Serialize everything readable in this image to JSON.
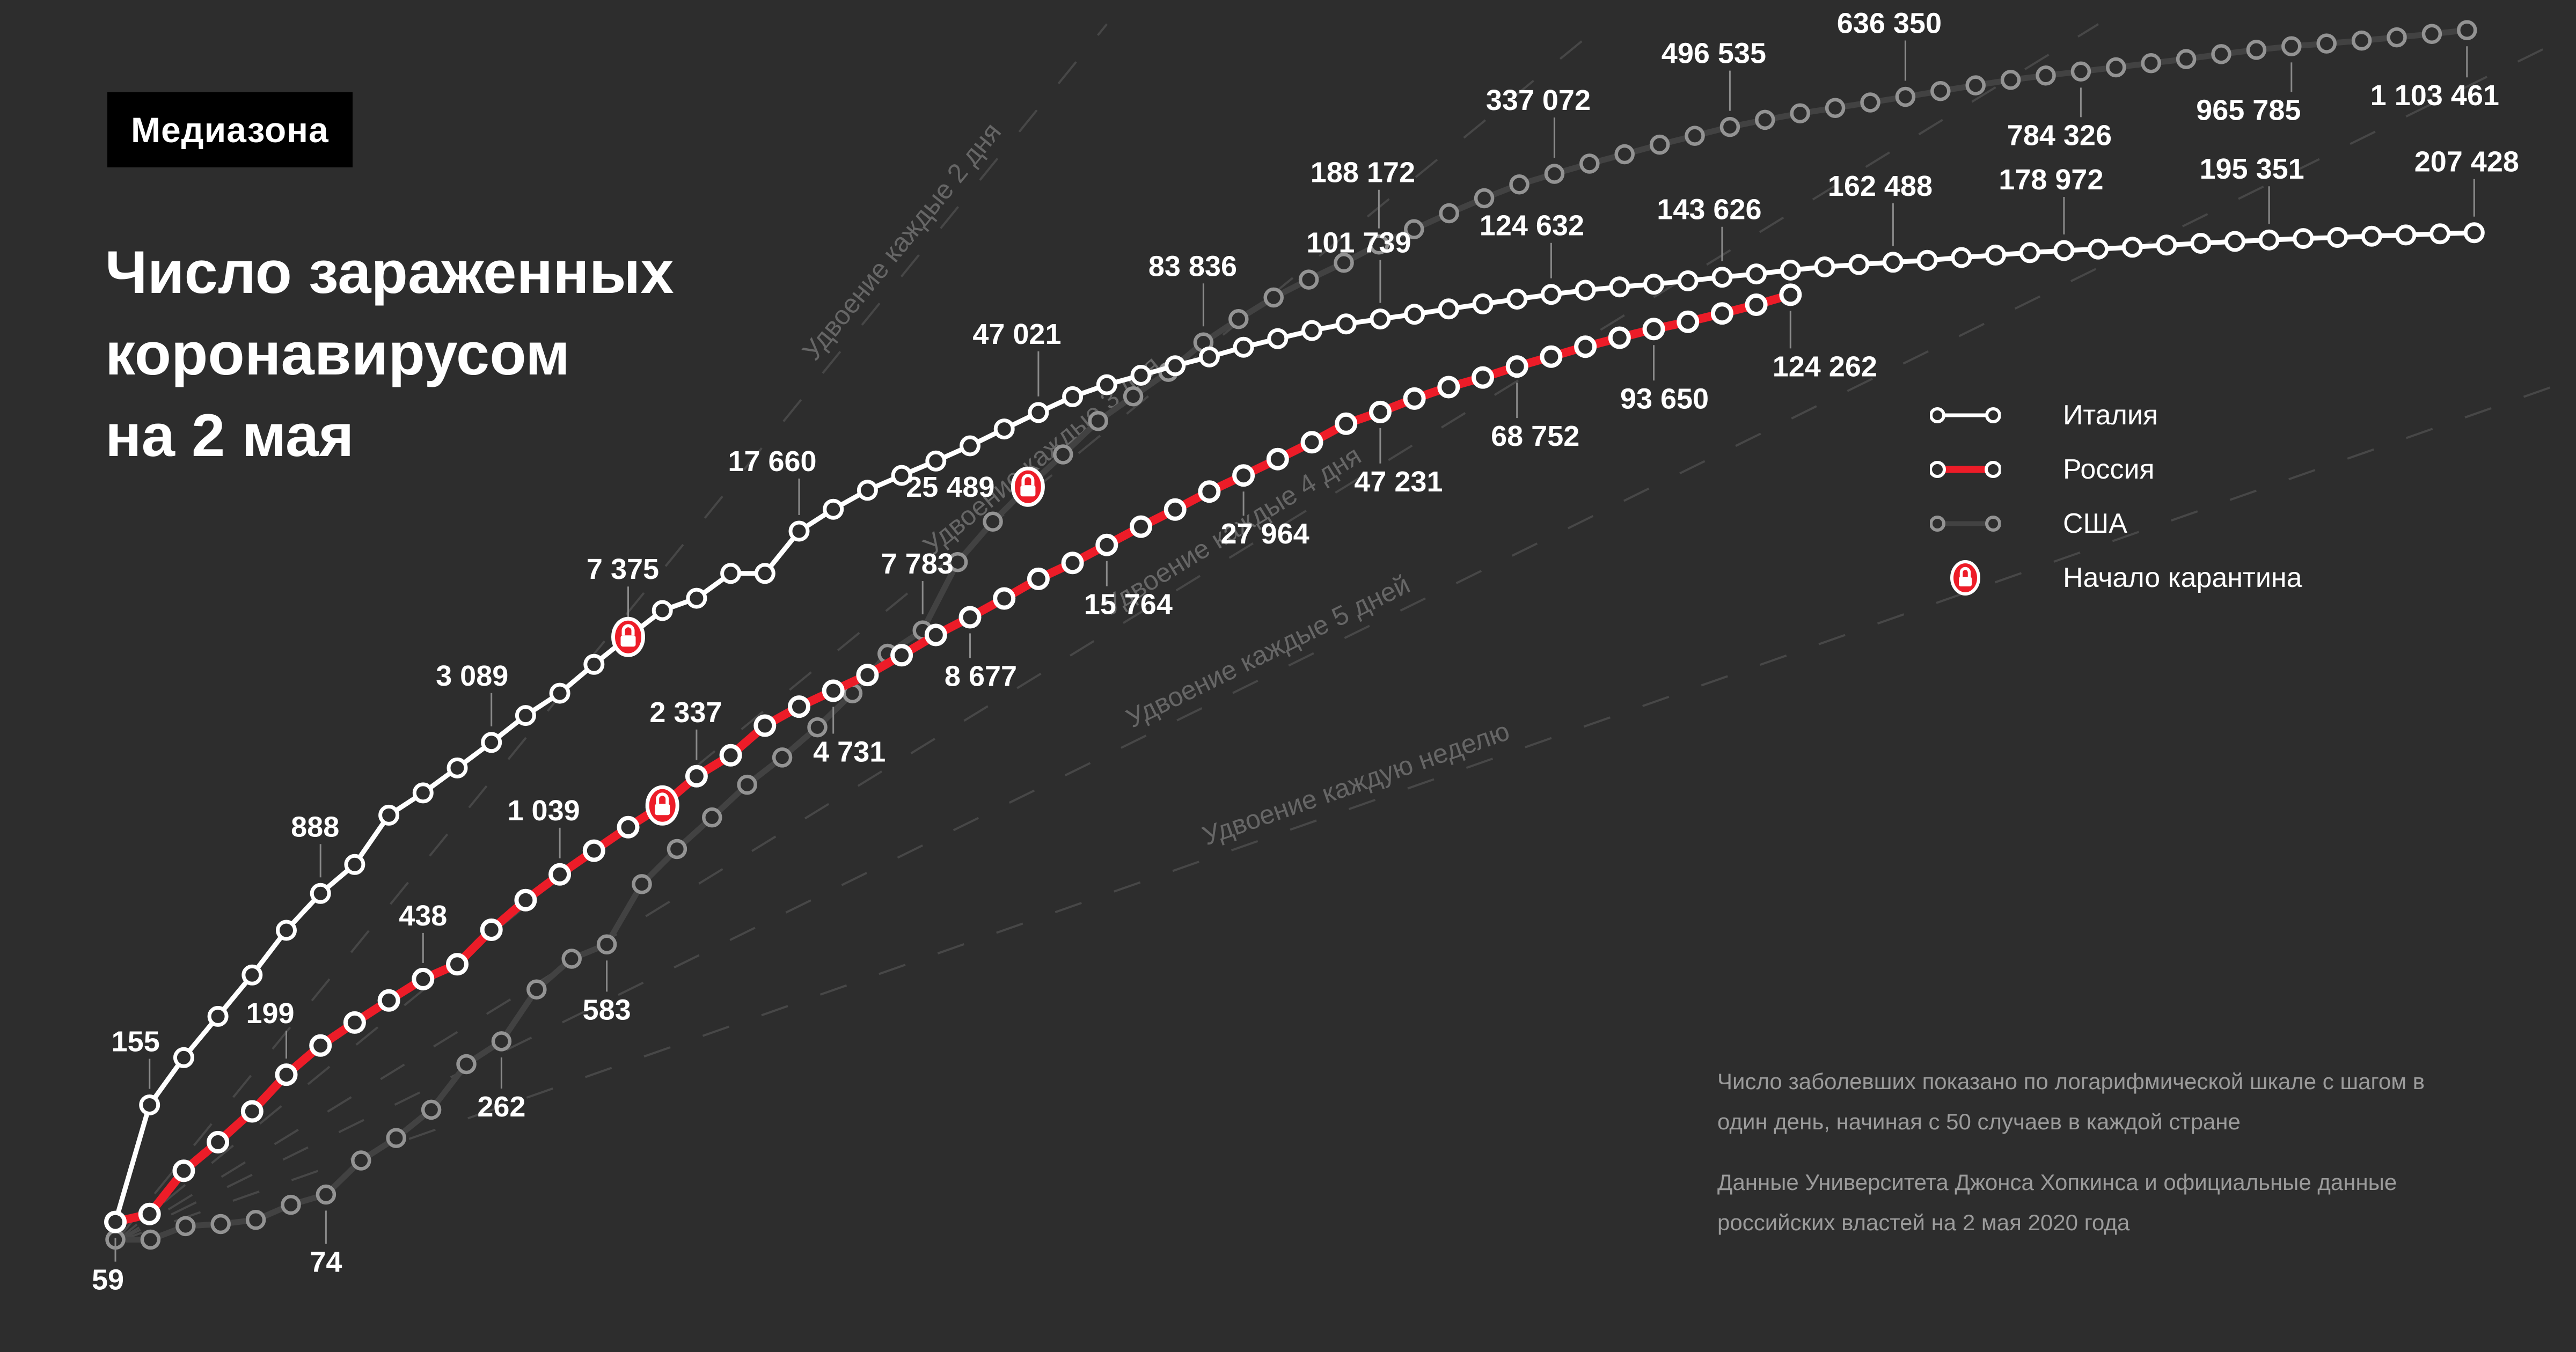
{
  "logo": {
    "text": "Медиазона"
  },
  "title": {
    "lines": [
      "Число зараженных",
      "коронавирусом",
      "на 2 мая"
    ]
  },
  "legend": {
    "items": [
      {
        "id": "italy",
        "label": "Италия"
      },
      {
        "id": "russia",
        "label": "Россия"
      },
      {
        "id": "usa",
        "label": "США"
      },
      {
        "id": "quarantine",
        "label": "Начало карантина"
      }
    ]
  },
  "notes": {
    "paragraphs": [
      "Число заболевших показано по логарифмической шкале с шагом в один день, начиная с 50 случаев в каждой стране",
      "Данные Университета Джонса Хопкинса и официальные данные российских властей на 2 мая 2020 года"
    ]
  },
  "colors": {
    "background": "#2d2d2d",
    "italy": "#ffffff",
    "russia": "#ed1c28",
    "usa_line": "#424242",
    "usa_marker": "#939393",
    "guide": "#474747",
    "guide_text": "#666666",
    "leader": "#8a8a8a",
    "label_text": "#ffffff",
    "note_text": "#9b9b9b"
  },
  "chart_data": {
    "type": "line",
    "y_scale": "log",
    "start_value": 50,
    "x_unit": "days since 50 cases, one marker per day",
    "grid": false,
    "legend_position": "right",
    "doubling_guides": [
      {
        "days": 2,
        "label": "Удвоение каждые 2 дня"
      },
      {
        "days": 3,
        "label": "Удвоение каждые 3 дня"
      },
      {
        "days": 4,
        "label": "Удвоение каждые 4 дня"
      },
      {
        "days": 5,
        "label": "Удвоение каждые 5 дней"
      },
      {
        "days": 7,
        "label": "Удвоение каждую неделю"
      }
    ],
    "series": [
      {
        "name": "США",
        "color": "#424242",
        "marker_color": "#939393",
        "line_width": 11,
        "quarantine_day": 26,
        "values": [
          51,
          51,
          57,
          58,
          60,
          68,
          74,
          98,
          118,
          149,
          217,
          262,
          402,
          518,
          583,
          959,
          1281,
          1663,
          2179,
          2727,
          3499,
          4632,
          6421,
          7783,
          13677,
          19100,
          25489,
          33276,
          43847,
          53740,
          65778,
          83836,
          101657,
          121478,
          140886,
          161807,
          188172,
          213372,
          243453,
          275586,
          308850,
          337072,
          366667,
          396223,
          429052,
          461437,
          496535,
          526396,
          555313,
          580619,
          607670,
          636350,
          667592,
          699706,
          732197,
          758809,
          784326,
          811865,
          840351,
          869170,
          905358,
          938154,
          965785,
          988197,
          1012582,
          1039909,
          1069424,
          1103461
        ],
        "labels": [
          {
            "day": 6,
            "text": "74",
            "side": "below",
            "len": 62,
            "dx": 0
          },
          {
            "day": 11,
            "text": "262",
            "side": "below",
            "len": 58,
            "dx": 0
          },
          {
            "day": 14,
            "text": "583",
            "side": "below",
            "len": 58,
            "dx": 0
          },
          {
            "day": 23,
            "text": "7 783",
            "side": "above",
            "len": 62,
            "dx": -10
          },
          {
            "day": 26,
            "text": "25 489",
            "side": "left",
            "len": 0,
            "dx": 0
          },
          {
            "day": 31,
            "text": "83 836",
            "side": "above",
            "len": 80,
            "dx": -20
          },
          {
            "day": 36,
            "text": "188 172",
            "side": "above",
            "len": 72,
            "dx": -30
          },
          {
            "day": 41,
            "text": "337 072",
            "side": "above",
            "len": 75,
            "dx": -30
          },
          {
            "day": 46,
            "text": "496 535",
            "side": "above",
            "len": 75,
            "dx": -30
          },
          {
            "day": 51,
            "text": "636 350",
            "side": "above",
            "len": 75,
            "dx": -30
          },
          {
            "day": 56,
            "text": "784 326",
            "side": "below",
            "len": 55,
            "dx": -40
          },
          {
            "day": 62,
            "text": "965 785",
            "side": "below",
            "len": 55,
            "dx": -80
          },
          {
            "day": 67,
            "text": "1 103 461",
            "side": "below",
            "len": 58,
            "dx": -60
          }
        ]
      },
      {
        "name": "Италия",
        "color": "#ffffff",
        "marker_color": "#ffffff",
        "line_width": 9,
        "quarantine_day": 15,
        "values": [
          59,
          155,
          229,
          322,
          453,
          655,
          888,
          1128,
          1694,
          2036,
          2502,
          3089,
          3858,
          4636,
          5883,
          7375,
          9172,
          10149,
          12462,
          12462,
          17660,
          21157,
          24747,
          27980,
          31506,
          35713,
          41035,
          47021,
          53578,
          59138,
          63927,
          69176,
          74386,
          80589,
          86498,
          92472,
          97689,
          101739,
          105792,
          110574,
          115242,
          119827,
          124632,
          128948,
          132547,
          135586,
          139422,
          143626,
          147577,
          152271,
          156363,
          159516,
          162488,
          165155,
          168941,
          172434,
          175925,
          178972,
          181228,
          183957,
          187327,
          189973,
          192994,
          195351,
          197675,
          199414,
          201505,
          203591,
          205463,
          207428
        ],
        "labels": [
          {
            "day": 0,
            "text": "59",
            "side": "below",
            "len": 44,
            "dx": -14
          },
          {
            "day": 1,
            "text": "155",
            "side": "above",
            "len": 56,
            "dx": -26
          },
          {
            "day": 6,
            "text": "888",
            "side": "above",
            "len": 62,
            "dx": -10
          },
          {
            "day": 11,
            "text": "3 089",
            "side": "above",
            "len": 62,
            "dx": -36
          },
          {
            "day": 15,
            "text": "7 375",
            "side": "above",
            "len": 64,
            "dx": -10
          },
          {
            "day": 20,
            "text": "17 660",
            "side": "above",
            "len": 68,
            "dx": -50
          },
          {
            "day": 27,
            "text": "47 021",
            "side": "above",
            "len": 84,
            "dx": -40
          },
          {
            "day": 37,
            "text": "101 739",
            "side": "above",
            "len": 80,
            "dx": -40
          },
          {
            "day": 42,
            "text": "124 632",
            "side": "above",
            "len": 66,
            "dx": -36
          },
          {
            "day": 47,
            "text": "143 626",
            "side": "above",
            "len": 64,
            "dx": -24
          },
          {
            "day": 52,
            "text": "162 488",
            "side": "above",
            "len": 80,
            "dx": -24
          },
          {
            "day": 57,
            "text": "178 972",
            "side": "above",
            "len": 70,
            "dx": -24
          },
          {
            "day": 63,
            "text": "195 351",
            "side": "above",
            "len": 70,
            "dx": -32
          },
          {
            "day": 69,
            "text": "207 428",
            "side": "above",
            "len": 70,
            "dx": -14
          }
        ]
      },
      {
        "name": "Россия",
        "color": "#ed1c28",
        "marker_color": "#ffffff",
        "line_width": 16,
        "quarantine_day": 16,
        "values": [
          59,
          63,
          90,
          114,
          147,
          199,
          253,
          306,
          367,
          438,
          495,
          658,
          840,
          1039,
          1264,
          1534,
          1836,
          2337,
          2777,
          3548,
          4149,
          4731,
          5389,
          6343,
          7497,
          8677,
          10131,
          11917,
          13584,
          15764,
          18328,
          21102,
          24490,
          27964,
          32008,
          36793,
          42853,
          47231,
          52763,
          57999,
          62773,
          68752,
          74588,
          80949,
          87147,
          93650,
          99399,
          106498,
          114431,
          124262
        ],
        "labels": [
          {
            "day": 5,
            "text": "199",
            "side": "above",
            "len": 52,
            "dx": -30
          },
          {
            "day": 9,
            "text": "438",
            "side": "above",
            "len": 56,
            "dx": 0
          },
          {
            "day": 13,
            "text": "1 039",
            "side": "above",
            "len": 57,
            "dx": -30
          },
          {
            "day": 17,
            "text": "2 337",
            "side": "above",
            "len": 57,
            "dx": -20
          },
          {
            "day": 21,
            "text": "4 731",
            "side": "below",
            "len": 50,
            "dx": 30
          },
          {
            "day": 25,
            "text": "8 677",
            "side": "below",
            "len": 46,
            "dx": 20
          },
          {
            "day": 29,
            "text": "15 764",
            "side": "below",
            "len": 47,
            "dx": 40
          },
          {
            "day": 33,
            "text": "27 964",
            "side": "below",
            "len": 45,
            "dx": 40
          },
          {
            "day": 37,
            "text": "47 231",
            "side": "below",
            "len": 66,
            "dx": 34
          },
          {
            "day": 41,
            "text": "68 752",
            "side": "below",
            "len": 66,
            "dx": 34
          },
          {
            "day": 45,
            "text": "93 650",
            "side": "below",
            "len": 66,
            "dx": 20
          },
          {
            "day": 49,
            "text": "124 262",
            "side": "below",
            "len": 70,
            "dx": 64
          }
        ]
      }
    ]
  }
}
